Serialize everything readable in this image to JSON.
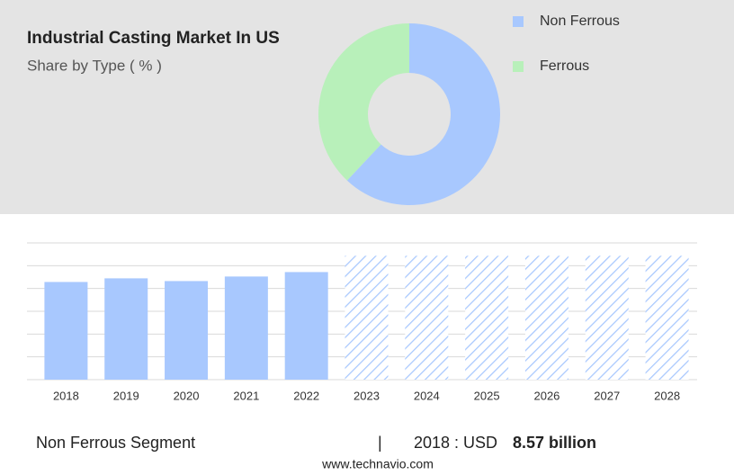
{
  "chart_data": [
    {
      "type": "pie",
      "title": "Industrial Casting Market In US",
      "subtitle": "Share by Type ( % )",
      "categories": [
        "Non Ferrous",
        "Ferrous"
      ],
      "values": [
        62,
        38
      ],
      "colors": [
        "#a8c8fe",
        "#b8f0ba"
      ],
      "donut": true,
      "legend": "top-right"
    },
    {
      "type": "bar",
      "categories": [
        "2018",
        "2019",
        "2020",
        "2021",
        "2022",
        "2023",
        "2024",
        "2025",
        "2026",
        "2027",
        "2028"
      ],
      "values": [
        8.57,
        8.89,
        8.65,
        9.05,
        9.44,
        10.87,
        10.87,
        10.87,
        10.87,
        10.87,
        10.87
      ],
      "hatched": [
        false,
        false,
        false,
        false,
        false,
        true,
        true,
        true,
        true,
        true,
        true
      ],
      "color": "#a8c8fe",
      "ylim": [
        0,
        12
      ],
      "yticks": [
        0,
        2,
        4,
        6,
        8,
        10,
        12
      ],
      "grid": true
    }
  ],
  "footer": {
    "segment": "Non Ferrous Segment",
    "separator": "|",
    "year_label": "2018 : USD",
    "value_label": "8.57 billion"
  },
  "source": "www.technavio.com"
}
